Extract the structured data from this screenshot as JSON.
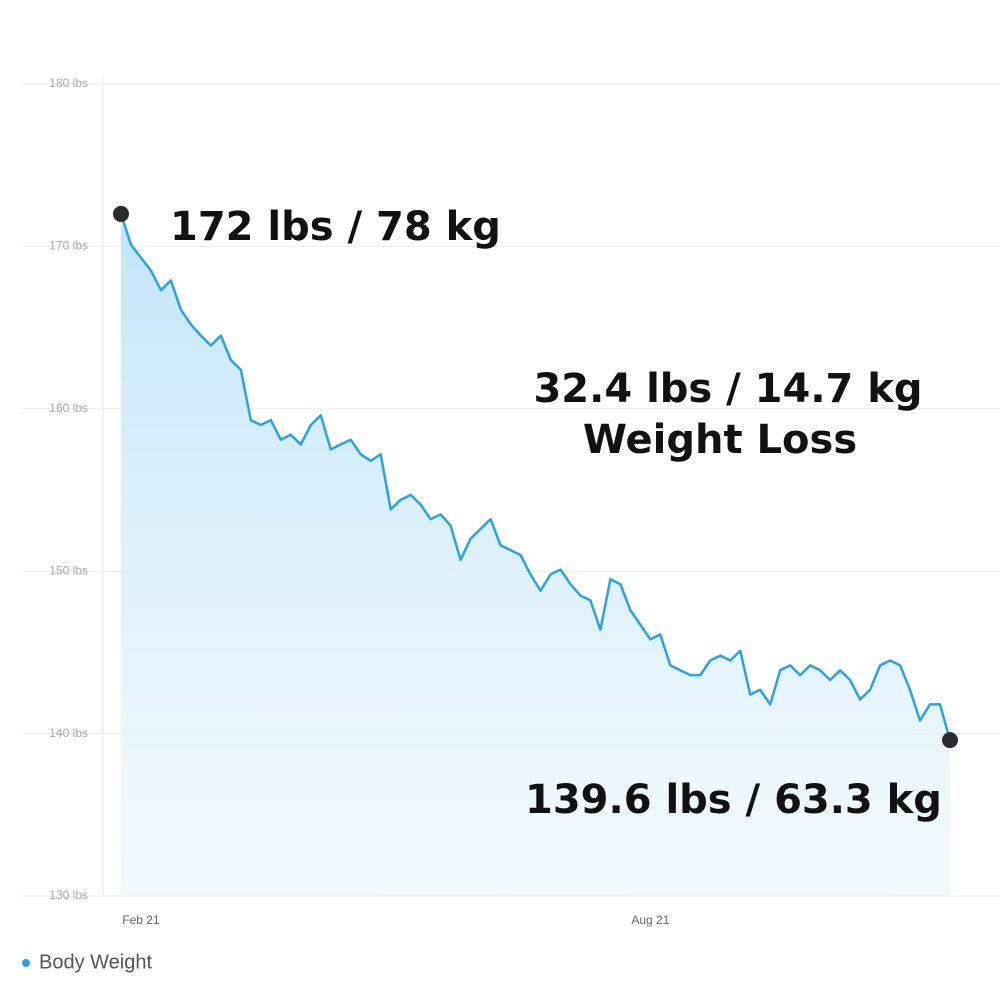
{
  "chart_data": {
    "type": "line",
    "categories": [
      null,
      null,
      "Feb 21",
      null,
      null,
      null,
      null,
      null,
      null,
      null,
      null,
      null,
      null,
      null,
      null,
      null,
      null,
      null,
      null,
      null,
      null,
      null,
      null,
      null,
      null,
      null,
      null,
      null,
      null,
      null,
      null,
      null,
      null,
      null,
      null,
      null,
      null,
      null,
      null,
      null,
      null,
      null,
      null,
      null,
      null,
      null,
      null,
      null,
      null,
      null,
      null,
      null,
      null,
      "Aug 21",
      null,
      null,
      null,
      null,
      null,
      null,
      null,
      null,
      null,
      null,
      null,
      null,
      null,
      null,
      null,
      null,
      null,
      null,
      null,
      null,
      null,
      null,
      null,
      null,
      null,
      null,
      null,
      null,
      null,
      null
    ],
    "series": [
      {
        "name": "Body Weight",
        "color": "#29a3e6",
        "values": [
          172,
          170.1,
          169.3,
          168.5,
          167.3,
          167.9,
          166.1,
          165.2,
          164.5,
          163.9,
          164.5,
          163.0,
          162.4,
          159.3,
          159.0,
          159.3,
          158.1,
          158.4,
          157.8,
          159.0,
          159.6,
          157.5,
          157.8,
          158.1,
          157.2,
          156.8,
          157.2,
          153.8,
          154.4,
          154.7,
          154.1,
          153.2,
          153.5,
          152.8,
          150.7,
          152.0,
          152.6,
          153.2,
          151.6,
          151.3,
          151.0,
          149.8,
          148.8,
          149.8,
          150.1,
          149.2,
          148.5,
          148.2,
          146.4,
          149.5,
          149.2,
          147.6,
          146.7,
          145.8,
          146.1,
          144.2,
          143.9,
          143.6,
          143.6,
          144.5,
          144.8,
          144.5,
          145.1,
          142.4,
          142.7,
          141.8,
          143.9,
          144.2,
          143.6,
          144.2,
          143.9,
          143.3,
          143.9,
          143.3,
          142.1,
          142.7,
          144.2,
          144.5,
          144.2,
          142.7,
          140.8,
          141.8,
          141.8,
          139.6
        ]
      }
    ],
    "ylim": [
      130,
      180
    ],
    "yticks": [
      {
        "value": 130,
        "label": "130 lbs"
      },
      {
        "value": 140,
        "label": "140 lbs"
      },
      {
        "value": 150,
        "label": "150 lbs"
      },
      {
        "value": 160,
        "label": "160 lbs"
      },
      {
        "value": 170,
        "label": "170 lbs"
      },
      {
        "value": 180,
        "label": "180 lbs"
      }
    ],
    "grid": true,
    "legend": "bottom-left",
    "annotations": [
      "172 lbs / 78 kg",
      "32.4 lbs / 14.7 kg",
      "Weight Loss",
      "139.6 lbs / 63.3 kg"
    ]
  }
}
